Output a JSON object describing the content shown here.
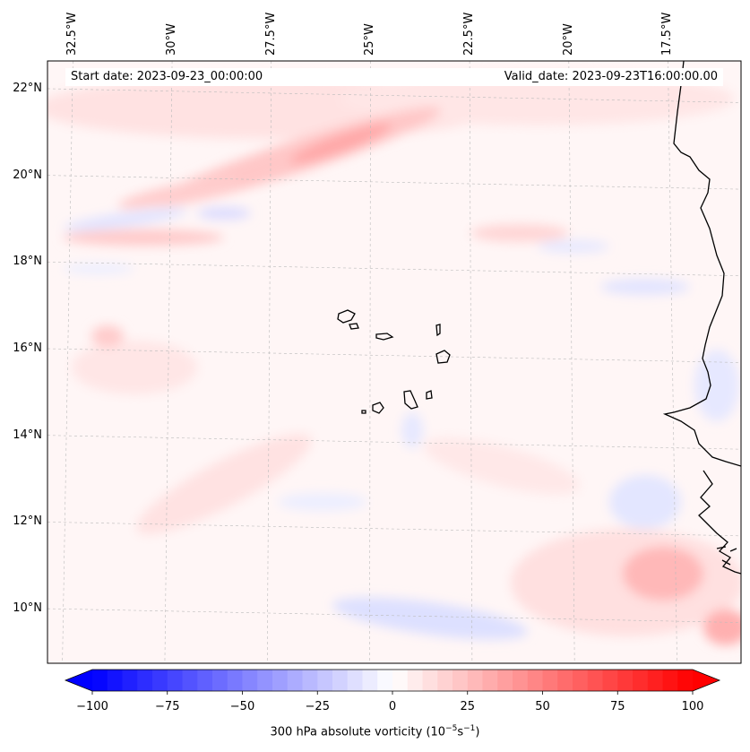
{
  "header": {
    "start_date": "Start date: 2023-09-23_00:00:00",
    "valid_date": "Valid_date: 2023-09-23T16:00:00.00"
  },
  "map": {
    "extent": {
      "lon_min": -33.0,
      "lon_max": -15.8,
      "lat_min": 8.9,
      "lat_max": 22.8
    },
    "lon_ticks": [
      {
        "value": -32.5,
        "label": "32.5°W"
      },
      {
        "value": -30.0,
        "label": "30°W"
      },
      {
        "value": -27.5,
        "label": "27.5°W"
      },
      {
        "value": -25.0,
        "label": "25°W"
      },
      {
        "value": -22.5,
        "label": "22.5°W"
      },
      {
        "value": -20.0,
        "label": "20°W"
      },
      {
        "value": -17.5,
        "label": "17.5°W"
      }
    ],
    "lat_ticks": [
      {
        "value": 22,
        "label": "22°N"
      },
      {
        "value": 20,
        "label": "20°N"
      },
      {
        "value": 18,
        "label": "18°N"
      },
      {
        "value": 16,
        "label": "16°N"
      },
      {
        "value": 14,
        "label": "14°N"
      },
      {
        "value": 12,
        "label": "12°N"
      },
      {
        "value": 10,
        "label": "10°N"
      }
    ],
    "gridlines": true,
    "field": "300 hPa absolute vorticity",
    "coastline_color": "#000000"
  },
  "colorbar": {
    "min": -100,
    "max": 100,
    "step": 5,
    "extend": "both",
    "colormap": "bwr",
    "low_color": "#0000ff",
    "mid_color": "#ffffff",
    "high_color": "#ff0000",
    "ticks": [
      {
        "value": -100,
        "label": "−100"
      },
      {
        "value": -75,
        "label": "−75"
      },
      {
        "value": -50,
        "label": "−50"
      },
      {
        "value": -25,
        "label": "−25"
      },
      {
        "value": 0,
        "label": "0"
      },
      {
        "value": 25,
        "label": "25"
      },
      {
        "value": 50,
        "label": "50"
      },
      {
        "value": 75,
        "label": "75"
      },
      {
        "value": 100,
        "label": "100"
      }
    ],
    "label_text": "300 hPa absolute vorticity (10",
    "label_exp1": "−5",
    "label_mid": "s",
    "label_exp2": "−1",
    "label_end": ")"
  }
}
